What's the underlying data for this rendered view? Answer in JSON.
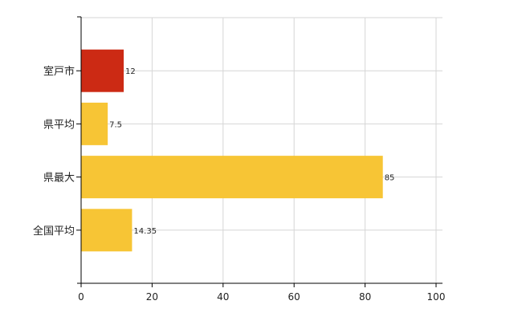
{
  "chart_data": {
    "type": "bar",
    "orientation": "horizontal",
    "categories": [
      "室戸市",
      "県平均",
      "県最大",
      "全国平均"
    ],
    "values": [
      12,
      7.5,
      85,
      14.35
    ],
    "value_labels": [
      "12",
      "7.5",
      "85",
      "14.35"
    ],
    "bar_colors": [
      "#cc2a14",
      "#f7c535",
      "#f7c535",
      "#f7c535"
    ],
    "xlim": [
      0,
      100
    ],
    "x_ticks": [
      0,
      20,
      40,
      60,
      80,
      100
    ],
    "x_tick_labels": [
      "0",
      "20",
      "40",
      "60",
      "80",
      "100"
    ],
    "grid": true,
    "title": "",
    "xlabel": "",
    "ylabel": ""
  }
}
